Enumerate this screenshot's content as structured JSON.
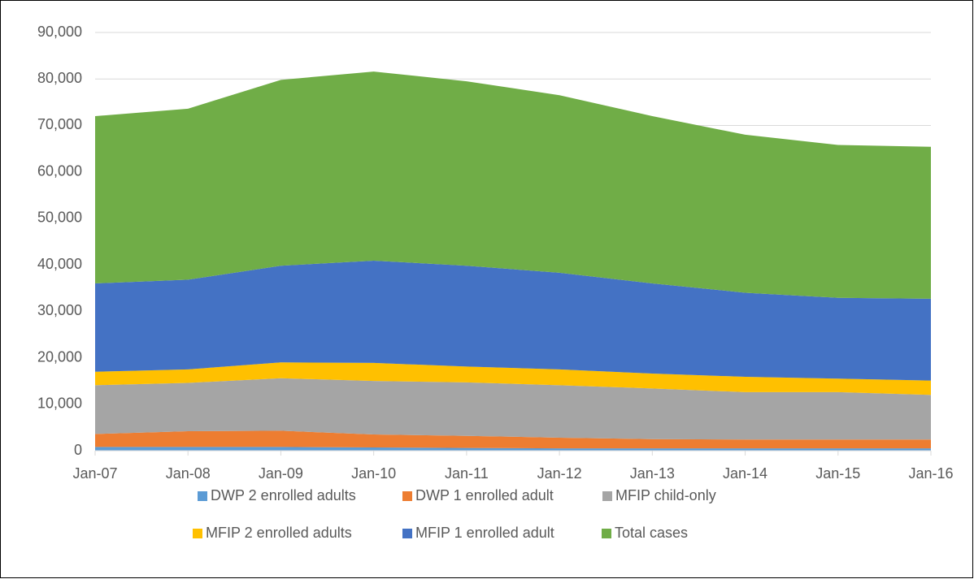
{
  "chart_data": {
    "type": "stacked_area",
    "categories": [
      "Jan-07",
      "Jan-08",
      "Jan-09",
      "Jan-10",
      "Jan-11",
      "Jan-12",
      "Jan-13",
      "Jan-14",
      "Jan-15",
      "Jan-16"
    ],
    "series": [
      {
        "name": "DWP 2 enrolled adults",
        "color": "#5b9bd5",
        "values": [
          800,
          800,
          800,
          700,
          600,
          500,
          500,
          500,
          500,
          500
        ]
      },
      {
        "name": "DWP 1 enrolled adult",
        "color": "#ed7d31",
        "values": [
          2800,
          3400,
          3500,
          2800,
          2600,
          2300,
          2000,
          1900,
          1900,
          1900
        ]
      },
      {
        "name": "MFIP child-only",
        "color": "#a5a5a5",
        "values": [
          10500,
          10400,
          11300,
          11500,
          11500,
          11300,
          10900,
          10200,
          10200,
          9600
        ]
      },
      {
        "name": "MFIP 2 enrolled adults",
        "color": "#ffc000",
        "values": [
          2900,
          2900,
          3400,
          3900,
          3400,
          3400,
          3200,
          3300,
          2900,
          3100
        ]
      },
      {
        "name": "MFIP 1 enrolled adult",
        "color": "#4472c4",
        "values": [
          19000,
          19300,
          20800,
          22000,
          21700,
          20800,
          19400,
          18100,
          17400,
          17600
        ]
      },
      {
        "name": "Total cases",
        "color": "#70ad47",
        "values": [
          36000,
          36800,
          40000,
          40700,
          39700,
          38200,
          36000,
          34000,
          32900,
          32700
        ]
      }
    ],
    "ylim": [
      0,
      90000
    ],
    "yticks": [
      0,
      {
        "value": 10000,
        "label": "10,000"
      },
      {
        "value": 20000,
        "label": "20,000"
      },
      {
        "value": 30000,
        "label": "30,000"
      },
      {
        "value": 40000,
        "label": "40,000"
      },
      {
        "value": 50000,
        "label": "50,000"
      },
      {
        "value": 60000,
        "label": "60,000"
      },
      {
        "value": 70000,
        "label": "70,000"
      },
      {
        "value": 80000,
        "label": "80,000"
      },
      {
        "value": 90000,
        "label": "90,000"
      }
    ],
    "grid": true,
    "legend": "bottom"
  }
}
